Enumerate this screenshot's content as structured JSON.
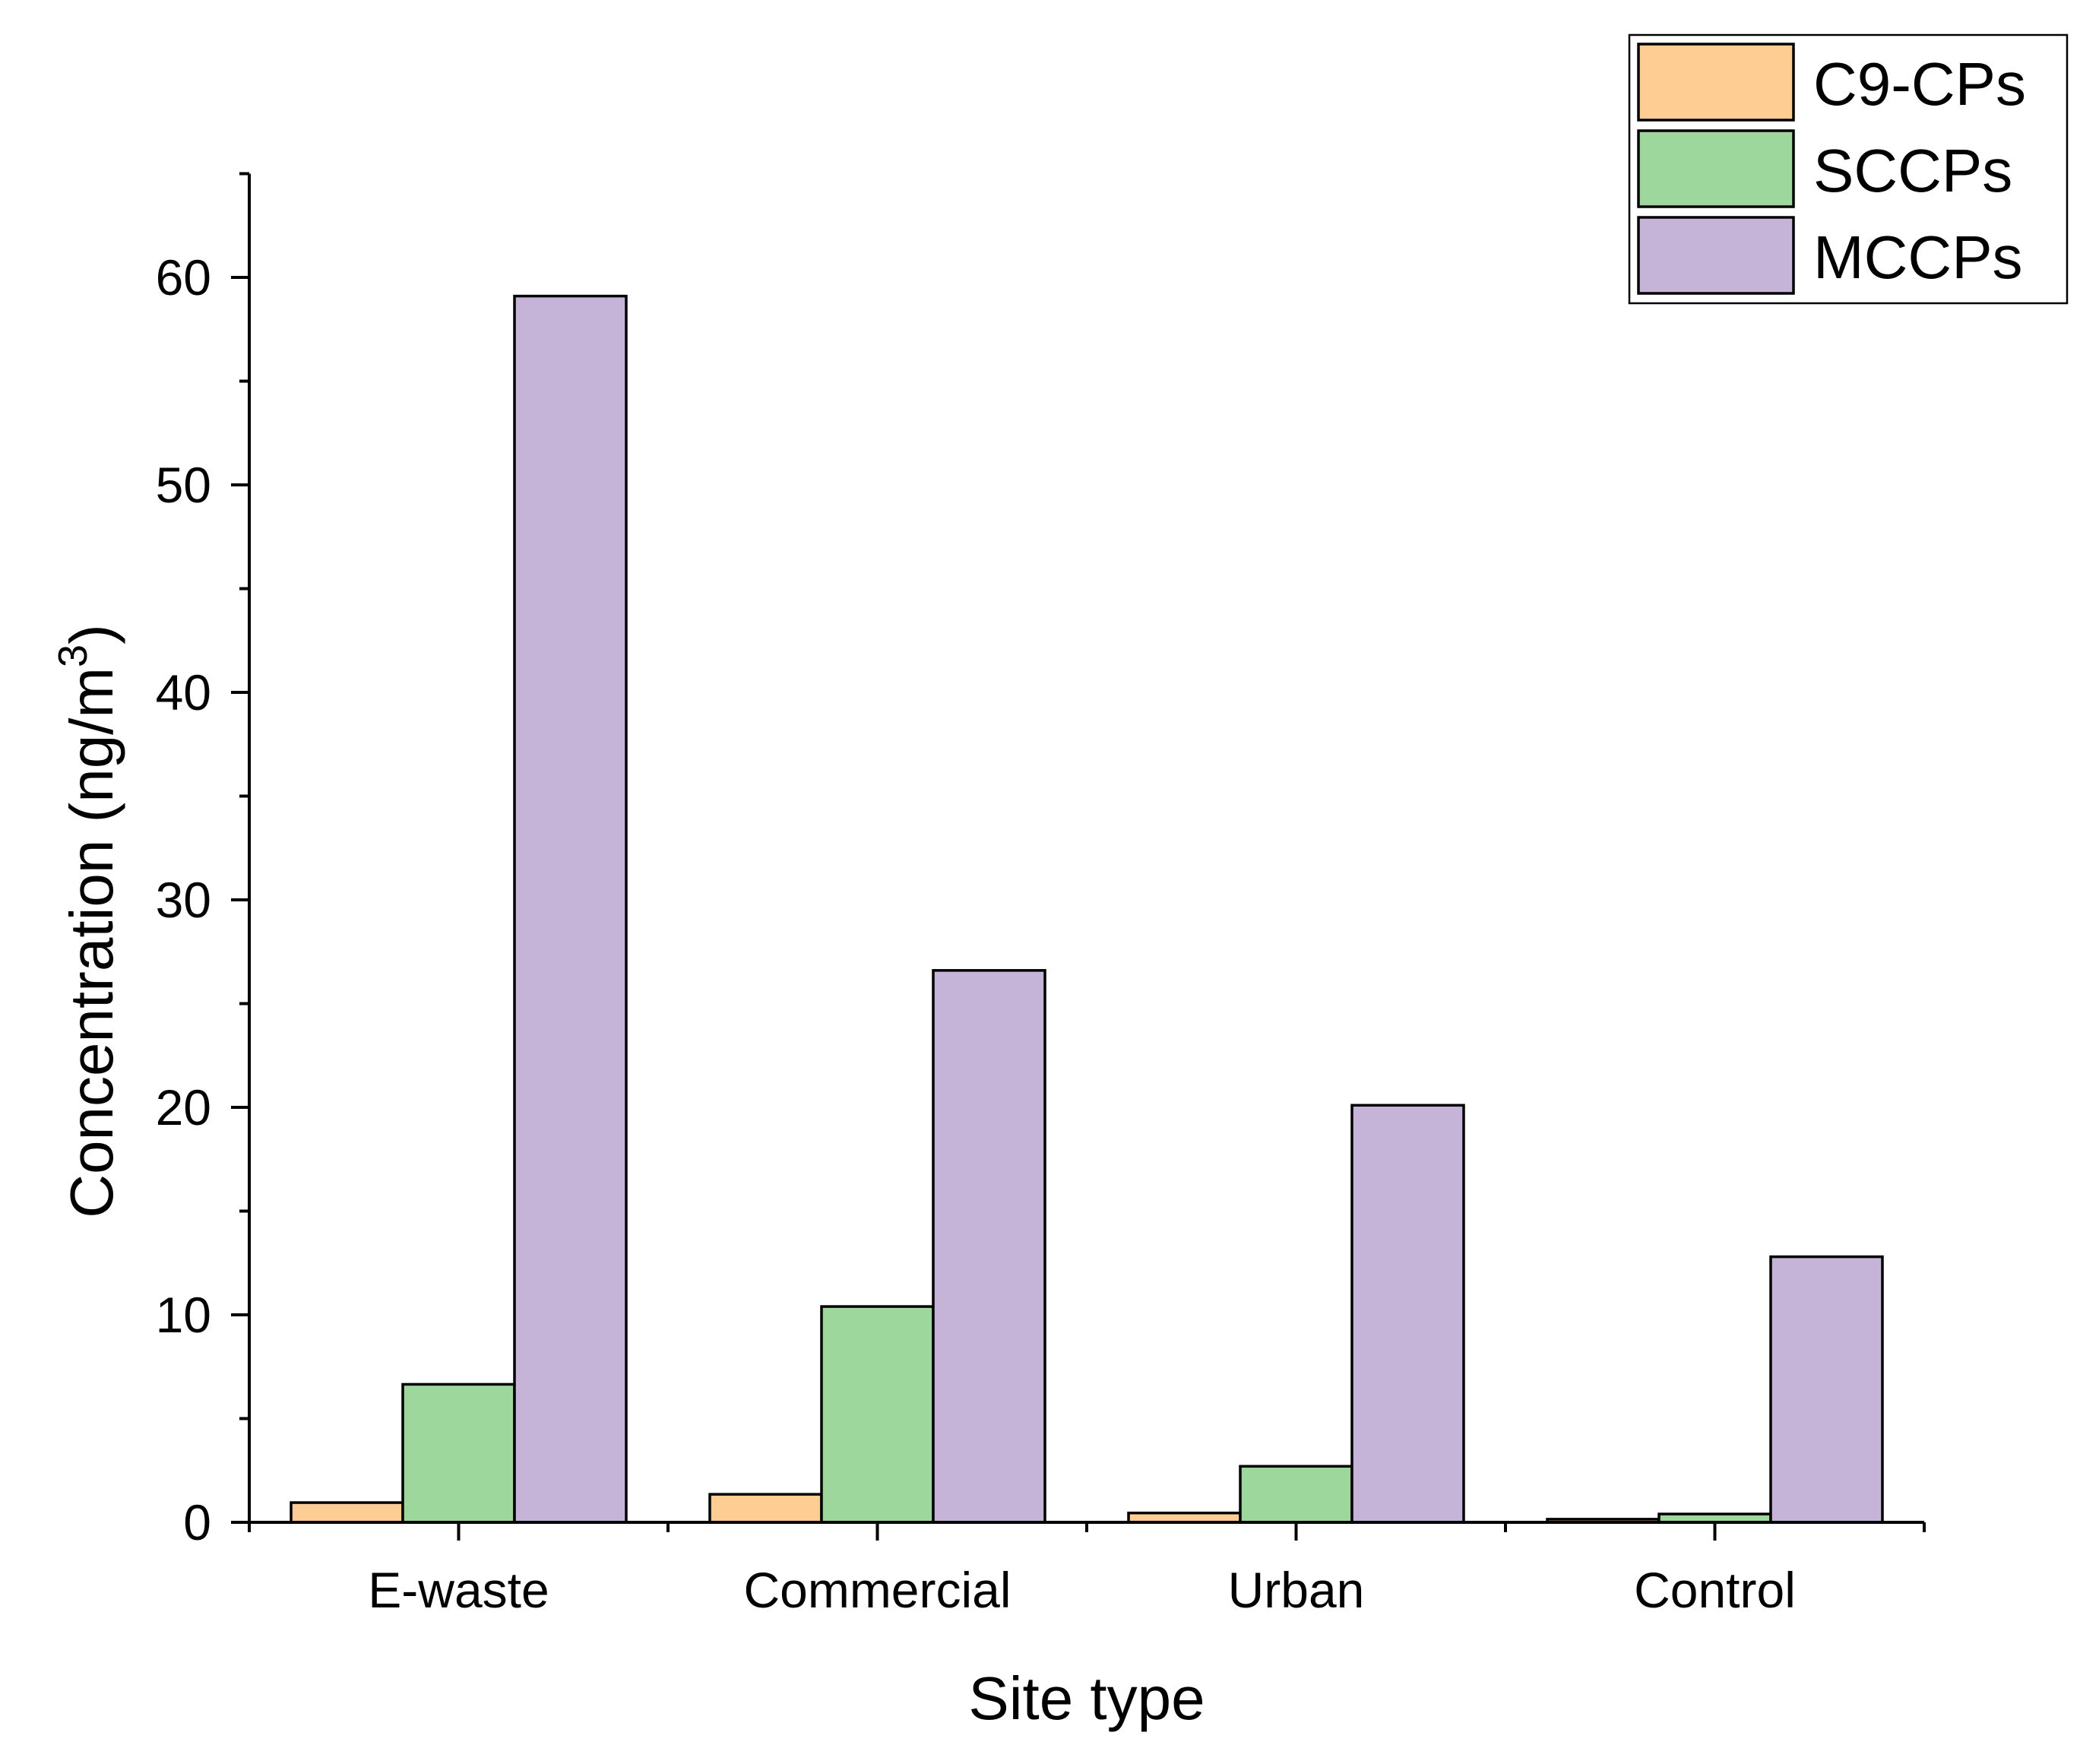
{
  "chart_data": {
    "type": "bar",
    "title": "",
    "xlabel": "Site type",
    "ylabel": {
      "main": "Concentration (ng/m",
      "superscript": "3",
      "close": ")"
    },
    "ylim": [
      0,
      65
    ],
    "yticks": [
      "0",
      "10",
      "20",
      "30",
      "40",
      "50",
      "60"
    ],
    "grid": false,
    "legend_position": "top-right",
    "categories": [
      "E-waste",
      "Commercial",
      "Urban",
      "Control"
    ],
    "series": [
      {
        "name": "C9-CPs",
        "color": "#FECD94",
        "values": [
          0.95,
          1.35,
          0.45,
          0.15
        ]
      },
      {
        "name": "SCCPs",
        "color": "#9DD79C",
        "values": [
          6.65,
          10.4,
          2.7,
          0.4
        ]
      },
      {
        "name": "MCCPs",
        "color": "#C6B4D8",
        "values": [
          59.1,
          26.6,
          20.1,
          12.8
        ]
      }
    ]
  }
}
